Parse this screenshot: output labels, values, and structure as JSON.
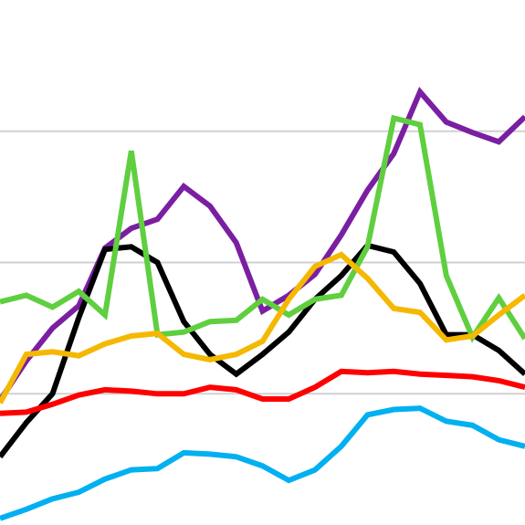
{
  "chart_data": {
    "type": "line",
    "title": "",
    "xlabel": "",
    "ylabel": "",
    "legend": "none",
    "grid": "horizontal",
    "ylim": [
      0,
      4
    ],
    "gridlines": [
      1,
      2,
      3
    ],
    "x": [
      0,
      1,
      2,
      3,
      4,
      5,
      6,
      7,
      8,
      9,
      10,
      11,
      12,
      13,
      14,
      15,
      16,
      17,
      18,
      19,
      20
    ],
    "series": [
      {
        "color": "#7a1fa2",
        "values": [
          0.95,
          1.25,
          1.5,
          1.67,
          2.11,
          2.26,
          2.33,
          2.58,
          2.43,
          2.15,
          1.63,
          1.75,
          1.91,
          2.21,
          2.55,
          2.83,
          3.3,
          3.07,
          2.99,
          2.92,
          3.11
        ]
      },
      {
        "color": "#000000",
        "values": [
          0.52,
          0.78,
          1.0,
          1.58,
          2.1,
          2.12,
          2.0,
          1.55,
          1.3,
          1.15,
          1.3,
          1.47,
          1.72,
          1.9,
          2.13,
          2.08,
          1.84,
          1.45,
          1.45,
          1.33,
          1.15
        ]
      },
      {
        "color": "#5fcf3f",
        "values": [
          1.7,
          1.75,
          1.66,
          1.78,
          1.6,
          2.85,
          1.45,
          1.47,
          1.55,
          1.56,
          1.72,
          1.6,
          1.72,
          1.75,
          2.12,
          3.1,
          3.05,
          1.9,
          1.43,
          1.73,
          1.42
        ]
      },
      {
        "color": "#f5b800",
        "values": [
          0.93,
          1.3,
          1.32,
          1.29,
          1.38,
          1.44,
          1.46,
          1.3,
          1.26,
          1.3,
          1.4,
          1.72,
          1.97,
          2.06,
          1.88,
          1.65,
          1.62,
          1.41,
          1.44,
          1.6,
          1.75
        ]
      },
      {
        "color": "#ff0000",
        "values": [
          0.85,
          0.86,
          0.92,
          0.99,
          1.03,
          1.02,
          1.0,
          1.0,
          1.05,
          1.03,
          0.96,
          0.96,
          1.05,
          1.17,
          1.16,
          1.17,
          1.15,
          1.14,
          1.13,
          1.1,
          1.05
        ]
      },
      {
        "color": "#00b0f0",
        "values": [
          0.05,
          0.12,
          0.2,
          0.25,
          0.35,
          0.42,
          0.43,
          0.55,
          0.54,
          0.52,
          0.45,
          0.34,
          0.42,
          0.6,
          0.84,
          0.88,
          0.89,
          0.79,
          0.76,
          0.65,
          0.6
        ]
      }
    ]
  }
}
